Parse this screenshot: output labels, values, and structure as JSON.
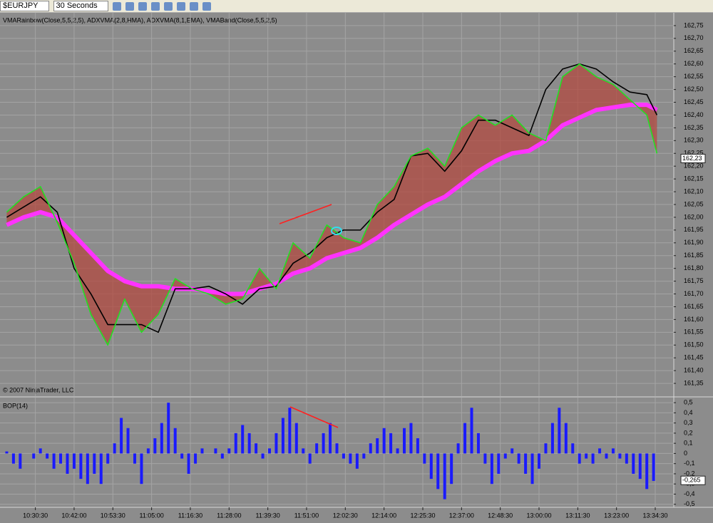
{
  "toolbar": {
    "instrument": "$EURJPY",
    "interval": "30 Seconds"
  },
  "chart_data": [
    {
      "type": "line",
      "title": "VMARainbow(Close,5,5,2,5), ADXVMA(2,8,HMA), ADXVMA(8,1,EMA), VMABand(Close,5,5,2,5)",
      "annotation": "© 2007 NinjaTrader, LLC",
      "x": [
        622,
        627,
        632,
        637,
        642,
        647,
        652,
        657,
        662,
        667,
        672,
        677,
        682,
        687,
        692,
        697,
        702,
        707,
        712,
        717,
        722,
        727,
        732,
        737,
        742,
        747,
        752,
        757,
        762,
        767,
        772,
        777,
        782,
        787,
        792,
        797,
        802,
        807,
        812,
        815
      ],
      "series": [
        {
          "color": "#22e022",
          "values": [
            162.02,
            162.08,
            162.12,
            161.98,
            161.82,
            161.62,
            161.5,
            161.68,
            161.55,
            161.62,
            161.76,
            161.72,
            161.7,
            161.66,
            161.68,
            161.8,
            161.72,
            161.9,
            161.84,
            161.97,
            161.92,
            161.9,
            162.05,
            162.12,
            162.24,
            162.27,
            162.2,
            162.35,
            162.4,
            162.36,
            162.4,
            162.33,
            162.3,
            162.55,
            162.6,
            162.55,
            162.52,
            162.46,
            162.4,
            162.25
          ]
        },
        {
          "color": "#000000",
          "values": [
            162.0,
            162.04,
            162.08,
            162.02,
            161.8,
            161.7,
            161.58,
            161.58,
            161.58,
            161.55,
            161.72,
            161.72,
            161.73,
            161.7,
            161.66,
            161.72,
            161.73,
            161.82,
            161.86,
            161.92,
            161.95,
            161.95,
            162.02,
            162.07,
            162.24,
            162.25,
            162.18,
            162.26,
            162.38,
            162.38,
            162.35,
            162.32,
            162.5,
            162.58,
            162.6,
            162.58,
            162.53,
            162.49,
            162.48,
            162.4
          ]
        },
        {
          "color": "#ff33ff",
          "values": [
            161.97,
            162.0,
            162.02,
            162.0,
            161.93,
            161.86,
            161.79,
            161.75,
            161.73,
            161.73,
            161.72,
            161.72,
            161.71,
            161.7,
            161.7,
            161.72,
            161.74,
            161.78,
            161.8,
            161.84,
            161.86,
            161.88,
            161.92,
            161.97,
            162.01,
            162.05,
            162.08,
            162.13,
            162.18,
            162.22,
            162.25,
            162.26,
            162.3,
            162.36,
            162.39,
            162.42,
            162.43,
            162.44,
            162.44,
            162.42
          ]
        }
      ],
      "band_color": "#b4443a",
      "last": {
        "value": 162.23,
        "label": "162,23"
      },
      "xlim": [
        620,
        820
      ],
      "ylim": [
        161.3,
        162.8
      ],
      "yticks": [
        {
          "value": 161.35,
          "label": "161,35"
        },
        {
          "value": 161.4,
          "label": "161,40"
        },
        {
          "value": 161.45,
          "label": "161,45"
        },
        {
          "value": 161.5,
          "label": "161,50"
        },
        {
          "value": 161.55,
          "label": "161,55"
        },
        {
          "value": 161.6,
          "label": "161,60"
        },
        {
          "value": 161.65,
          "label": "161,65"
        },
        {
          "value": 161.7,
          "label": "161,70"
        },
        {
          "value": 161.75,
          "label": "161,75"
        },
        {
          "value": 161.8,
          "label": "161,80"
        },
        {
          "value": 161.85,
          "label": "161,85"
        },
        {
          "value": 161.9,
          "label": "161,90"
        },
        {
          "value": 161.95,
          "label": "161,95"
        },
        {
          "value": 162.0,
          "label": "162,00"
        },
        {
          "value": 162.05,
          "label": "162,05"
        },
        {
          "value": 162.1,
          "label": "162,10"
        },
        {
          "value": 162.15,
          "label": "162,15"
        },
        {
          "value": 162.2,
          "label": "162,20"
        },
        {
          "value": 162.25,
          "label": "162,25"
        },
        {
          "value": 162.3,
          "label": "162,30"
        },
        {
          "value": 162.35,
          "label": "162,35"
        },
        {
          "value": 162.4,
          "label": "162,40"
        },
        {
          "value": 162.45,
          "label": "162,45"
        },
        {
          "value": 162.5,
          "label": "162,50"
        },
        {
          "value": 162.55,
          "label": "162,55"
        },
        {
          "value": 162.6,
          "label": "162,60"
        },
        {
          "value": 162.65,
          "label": "162,65"
        },
        {
          "value": 162.7,
          "label": "162,70"
        },
        {
          "value": 162.75,
          "label": "162,75"
        }
      ],
      "grid": true
    },
    {
      "type": "bar",
      "title": "BOP(14)",
      "color": "#1a1aff",
      "x": [
        622,
        624,
        626,
        628,
        630,
        632,
        634,
        636,
        638,
        640,
        642,
        644,
        646,
        648,
        650,
        652,
        654,
        656,
        658,
        660,
        662,
        664,
        666,
        668,
        670,
        672,
        674,
        676,
        678,
        680,
        682,
        684,
        686,
        688,
        690,
        692,
        694,
        696,
        698,
        700,
        702,
        704,
        706,
        708,
        710,
        712,
        714,
        716,
        718,
        720,
        722,
        724,
        726,
        728,
        730,
        732,
        734,
        736,
        738,
        740,
        742,
        744,
        746,
        748,
        750,
        752,
        754,
        756,
        758,
        760,
        762,
        764,
        766,
        768,
        770,
        772,
        774,
        776,
        778,
        780,
        782,
        784,
        786,
        788,
        790,
        792,
        794,
        796,
        798,
        800,
        802,
        804,
        806,
        808,
        810,
        812,
        814
      ],
      "values": [
        0.02,
        -0.1,
        -0.15,
        0.0,
        -0.05,
        0.05,
        -0.05,
        -0.15,
        -0.1,
        -0.2,
        -0.15,
        -0.25,
        -0.3,
        -0.2,
        -0.3,
        -0.1,
        0.1,
        0.35,
        0.25,
        -0.1,
        -0.3,
        0.05,
        0.15,
        0.3,
        0.5,
        0.25,
        -0.05,
        -0.2,
        -0.1,
        0.05,
        0.0,
        0.05,
        -0.05,
        0.05,
        0.2,
        0.28,
        0.2,
        0.1,
        -0.05,
        0.05,
        0.2,
        0.35,
        0.45,
        0.3,
        0.05,
        -0.1,
        0.1,
        0.2,
        0.3,
        0.1,
        -0.05,
        -0.1,
        -0.15,
        -0.05,
        0.1,
        0.15,
        0.25,
        0.2,
        0.05,
        0.25,
        0.3,
        0.15,
        -0.1,
        -0.25,
        -0.35,
        -0.45,
        -0.3,
        0.1,
        0.3,
        0.45,
        0.2,
        -0.1,
        -0.3,
        -0.2,
        -0.05,
        0.05,
        -0.1,
        -0.2,
        -0.3,
        -0.15,
        0.1,
        0.3,
        0.45,
        0.3,
        0.1,
        -0.1,
        -0.05,
        -0.1,
        0.05,
        -0.05,
        0.05,
        -0.05,
        -0.1,
        -0.2,
        -0.25,
        -0.35,
        -0.27
      ],
      "last": {
        "value": -0.265,
        "label": "-0,265"
      },
      "xlim": [
        620,
        820
      ],
      "ylim": [
        -0.53,
        0.55
      ],
      "yticks": [
        {
          "value": -0.5,
          "label": "-0,5"
        },
        {
          "value": -0.4,
          "label": "-0,4"
        },
        {
          "value": -0.3,
          "label": "-0,3"
        },
        {
          "value": -0.2,
          "label": "-0,2"
        },
        {
          "value": -0.1,
          "label": "-0,1"
        },
        0,
        {
          "value": 0.1,
          "label": "0,1"
        },
        {
          "value": 0.2,
          "label": "0,2"
        },
        {
          "value": 0.3,
          "label": "0,3"
        },
        {
          "value": 0.4,
          "label": "0,4"
        },
        {
          "value": 0.5,
          "label": "0,5"
        }
      ],
      "xticks": [
        {
          "value": 630.5,
          "label": "10:30:30"
        },
        {
          "value": 642,
          "label": "10:42:00"
        },
        {
          "value": 653.5,
          "label": "10:53:30"
        },
        {
          "value": 665,
          "label": "11:05:00"
        },
        {
          "value": 676.5,
          "label": "11:16:30"
        },
        {
          "value": 688,
          "label": "11:28:00"
        },
        {
          "value": 699.5,
          "label": "11:39:30"
        },
        {
          "value": 711,
          "label": "11:51:00"
        },
        {
          "value": 722.5,
          "label": "12:02:30"
        },
        {
          "value": 734,
          "label": "12:14:00"
        },
        {
          "value": 745.5,
          "label": "12:25:30"
        },
        {
          "value": 757,
          "label": "12:37:00"
        },
        {
          "value": 768.5,
          "label": "12:48:30"
        },
        {
          "value": 780,
          "label": "13:00:00"
        },
        {
          "value": 791.5,
          "label": "13:11:30"
        },
        {
          "value": 803,
          "label": "13:23:00"
        },
        {
          "value": 814.5,
          "label": "13:34:30"
        }
      ],
      "grid": true
    }
  ]
}
